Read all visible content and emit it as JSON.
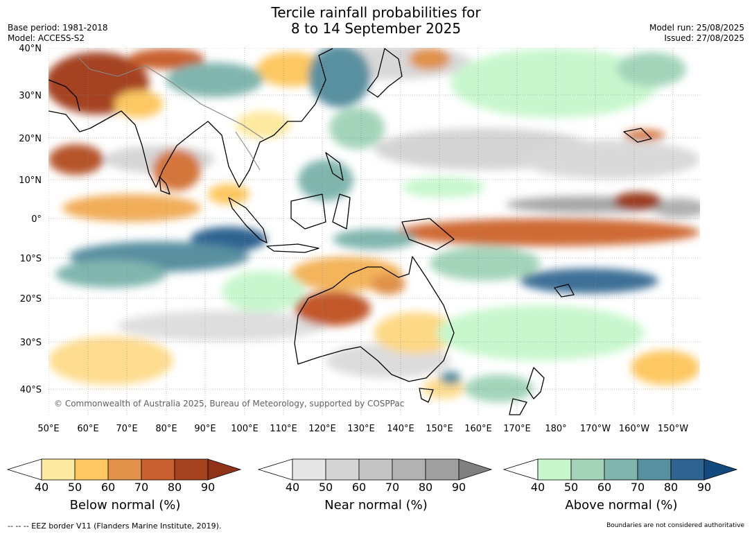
{
  "header": {
    "title_line1": "Tercile rainfall probabilities for",
    "title_line2": "8 to 14 September 2025",
    "base_period": "Base period: 1981-2018",
    "model": "Model: ACCESS-S2",
    "model_run": "Model run: 25/08/2025",
    "issued": "Issued: 27/08/2025"
  },
  "map": {
    "copyright": "© Commonwealth of Australia 2025, Bureau of Meteorology, supported by COSPPac",
    "lat_labels": [
      "40°N",
      "30°N",
      "20°N",
      "10°N",
      "0°",
      "10°S",
      "20°S",
      "30°S",
      "40°S"
    ],
    "lon_labels": [
      "50°E",
      "60°E",
      "70°E",
      "80°E",
      "90°E",
      "100°E",
      "110°E",
      "120°E",
      "130°E",
      "140°E",
      "150°E",
      "160°E",
      "170°E",
      "180°",
      "170°W",
      "160°W",
      "150°W"
    ],
    "ocean_color": "#ffffff",
    "grid_color": "#8a8a8a"
  },
  "colorbars": [
    {
      "title": "Below normal (%)",
      "ticks": [
        "40",
        "50",
        "60",
        "70",
        "80",
        "90"
      ],
      "colors": [
        "#ffffff",
        "#feeba3",
        "#fdc862",
        "#e0914a",
        "#c8602f",
        "#a44320",
        "#8f3218"
      ]
    },
    {
      "title": "Near normal (%)",
      "ticks": [
        "40",
        "50",
        "60",
        "70",
        "80",
        "90"
      ],
      "colors": [
        "#ffffff",
        "#e6e6e6",
        "#d4d4d4",
        "#c4c4c4",
        "#b2b2b2",
        "#a0a0a0",
        "#808080"
      ]
    },
    {
      "title": "Above normal (%)",
      "ticks": [
        "40",
        "50",
        "60",
        "70",
        "80",
        "90"
      ],
      "colors": [
        "#ffffff",
        "#c8f7ce",
        "#a3d4b9",
        "#80b5ae",
        "#5890a0",
        "#2f6390",
        "#124a7e"
      ]
    }
  ],
  "footer": {
    "eez_note": "--  --  -- EEZ border V11 (Flanders Marine Institute, 2019).",
    "disclaimer": "Boundaries are not considered authoritative"
  }
}
